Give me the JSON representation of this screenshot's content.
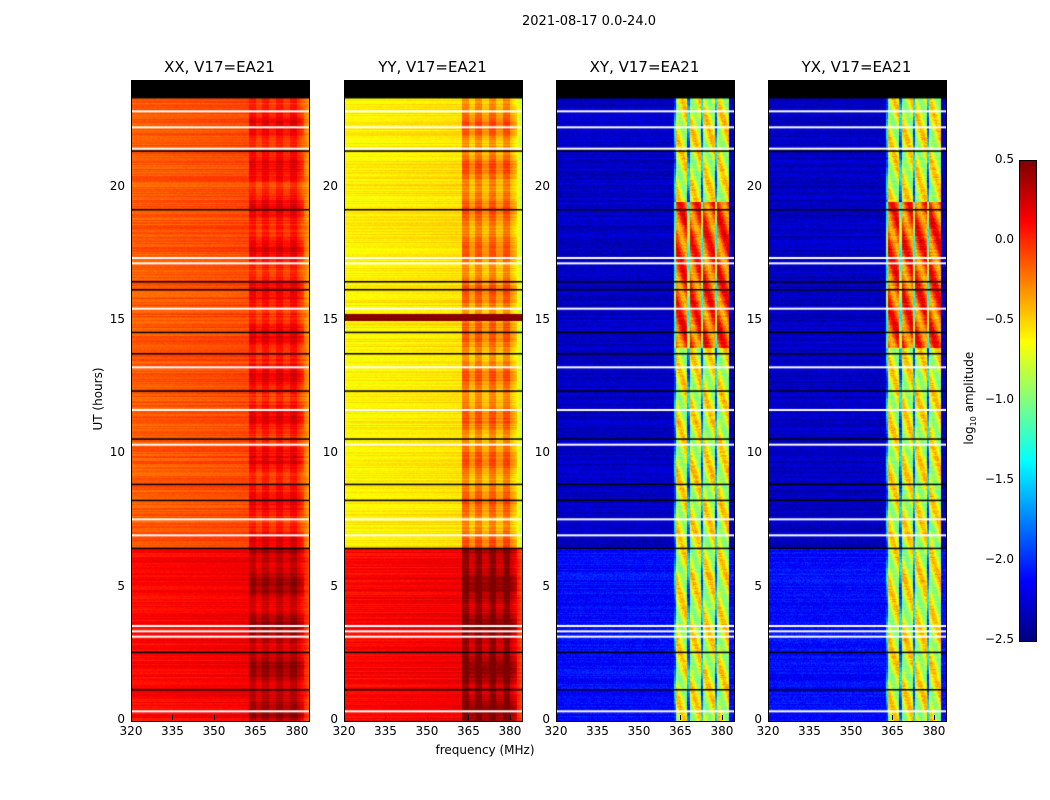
{
  "chart_data": {
    "type": "heatmap",
    "suptitle": "2021-08-17 0.0-24.0",
    "xlabel": "frequency (MHz)",
    "ylabel": "UT (hours)",
    "xlim": [
      320,
      384
    ],
    "ylim": [
      0,
      24
    ],
    "xticks": [
      "320",
      "335",
      "350",
      "365",
      "380"
    ],
    "yticks": [
      "0",
      "5",
      "10",
      "15",
      "20"
    ],
    "colorbar": {
      "label": "log10 amplitude",
      "label_main": "log",
      "label_sub": "10",
      "label_rest": " amplitude",
      "colormap": "jet",
      "range": [
        -2.5,
        0.5
      ],
      "ticks": [
        "0.5",
        "0.0",
        "−0.5",
        "−1.0",
        "−1.5",
        "−2.0",
        "−2.5"
      ]
    },
    "data_end_hour": 23.4,
    "flagged_hours_white": [
      0.4,
      3.2,
      3.4,
      3.6,
      7.0,
      7.6,
      10.4,
      11.7,
      13.3,
      15.5,
      17.2,
      17.4,
      21.5,
      22.3,
      22.9
    ],
    "gap_hours_black": [
      1.2,
      2.6,
      6.5,
      8.3,
      8.9,
      10.6,
      12.4,
      13.8,
      14.6,
      16.2,
      16.5,
      19.2,
      21.4,
      23.4
    ],
    "panels": [
      {
        "title": "XX, V17=EA21",
        "base_day": -0.15,
        "base_night": 0.1,
        "rfi_level": 0.2
      },
      {
        "title": "YY, V17=EA21",
        "base_day": -0.6,
        "base_night": 0.1,
        "rfi_level": 0.35
      },
      {
        "title": "XY, V17=EA21",
        "base_day": -2.3,
        "base_night": -2.1,
        "rfi_level": -0.7
      },
      {
        "title": "YX, V17=EA21",
        "base_day": -2.3,
        "base_night": -2.1,
        "rfi_level": -0.7
      }
    ],
    "rfi_band_mhz": [
      362,
      382
    ]
  }
}
